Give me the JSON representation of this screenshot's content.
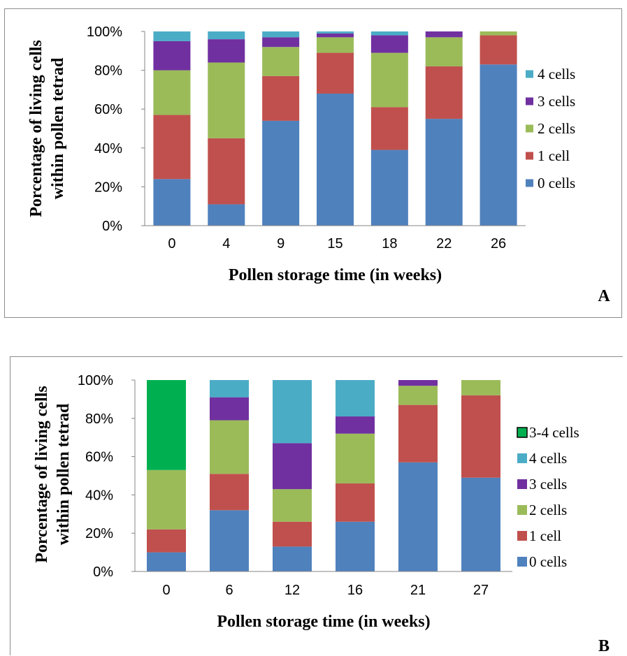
{
  "chart_data": [
    {
      "type": "bar",
      "stacked": true,
      "percent": true,
      "panel_label": "A",
      "xlabel": "Pollen storage time (in weeks)",
      "ylabel_lines": [
        "Porcentage of living cells",
        "within pollen tetrad"
      ],
      "ylim": [
        0,
        100
      ],
      "yticks": [
        "0%",
        "20%",
        "40%",
        "60%",
        "80%",
        "100%"
      ],
      "grid": false,
      "legend_position": "right",
      "categories": [
        "0",
        "4",
        "9",
        "15",
        "18",
        "22",
        "26"
      ],
      "series": [
        {
          "name": "0 cells",
          "color": "#4F81BD",
          "values": [
            24,
            11,
            54,
            68,
            39,
            55,
            83
          ]
        },
        {
          "name": "1 cell",
          "color": "#C0504D",
          "values": [
            33,
            34,
            23,
            21,
            22,
            27,
            15
          ]
        },
        {
          "name": "2 cells",
          "color": "#9BBB59",
          "values": [
            23,
            39,
            15,
            8,
            28,
            15,
            2
          ]
        },
        {
          "name": "3 cells",
          "color": "#7030A0",
          "values": [
            15,
            12,
            5,
            2,
            9,
            3,
            0
          ]
        },
        {
          "name": "4 cells",
          "color": "#4BACC6",
          "values": [
            5,
            4,
            3,
            1,
            2,
            0,
            0
          ]
        }
      ]
    },
    {
      "type": "bar",
      "stacked": true,
      "percent": true,
      "panel_label": "B",
      "xlabel": "Pollen storage time (in weeks)",
      "ylabel_lines": [
        "Porcentage of living cells",
        "within pollen tetrad"
      ],
      "ylim": [
        0,
        100
      ],
      "yticks": [
        "0%",
        "20%",
        "40%",
        "60%",
        "80%",
        "100%"
      ],
      "grid": false,
      "legend_position": "right",
      "categories": [
        "0",
        "6",
        "12",
        "16",
        "21",
        "27"
      ],
      "series": [
        {
          "name": "0 cells",
          "color": "#4F81BD",
          "values": [
            10,
            32,
            13,
            26,
            57,
            49
          ]
        },
        {
          "name": "1 cell",
          "color": "#C0504D",
          "values": [
            12,
            19,
            13,
            20,
            30,
            43
          ]
        },
        {
          "name": "2 cells",
          "color": "#9BBB59",
          "values": [
            31,
            28,
            17,
            26,
            10,
            8
          ]
        },
        {
          "name": "3 cells",
          "color": "#7030A0",
          "values": [
            0,
            12,
            24,
            9,
            3,
            0
          ]
        },
        {
          "name": "4 cells",
          "color": "#4BACC6",
          "values": [
            0,
            9,
            33,
            19,
            0,
            0
          ]
        },
        {
          "name": "3-4 cells",
          "color": "#00B050",
          "values": [
            47,
            0,
            0,
            0,
            0,
            0
          ]
        }
      ]
    }
  ]
}
